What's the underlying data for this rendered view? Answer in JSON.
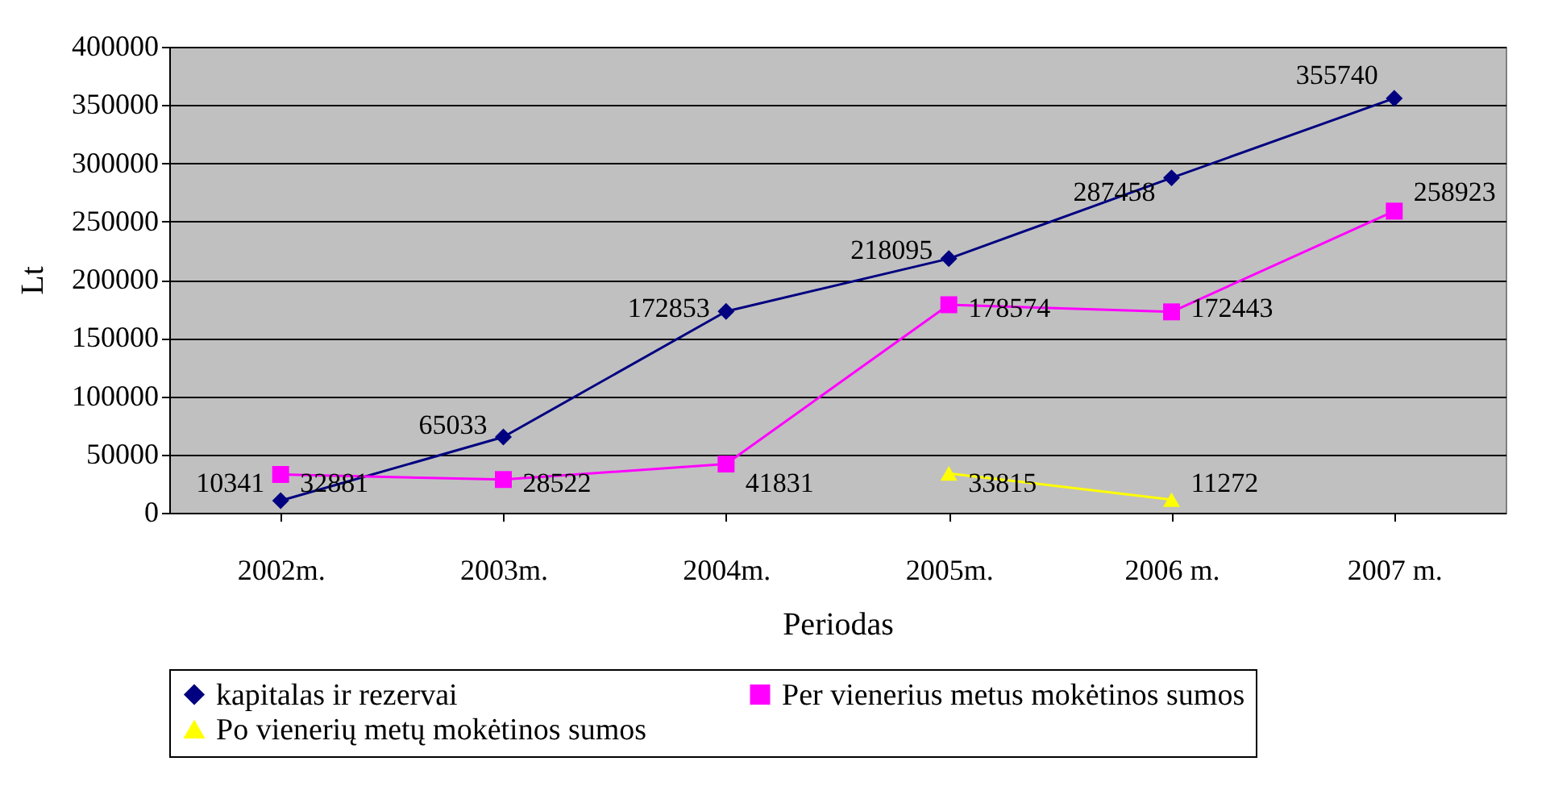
{
  "chart_data": {
    "type": "line",
    "xlabel": "Periodas",
    "ylabel": "Lt",
    "categories": [
      "2002m.",
      "2003m.",
      "2004m.",
      "2005m.",
      "2006 m.",
      "2007 m."
    ],
    "series": [
      {
        "name": "kapitalas ir rezervai",
        "color": "#000080",
        "marker": "diamond",
        "values": [
          10341,
          65033,
          172853,
          218095,
          287458,
          355740
        ]
      },
      {
        "name": "Per vienerius metus mokėtinos sumos",
        "color": "#ff00ff",
        "marker": "square",
        "values": [
          32881,
          28522,
          41831,
          178574,
          172443,
          258923
        ]
      },
      {
        "name": "Po vienerių metų mokėtinos sumos",
        "color": "#ffff00",
        "marker": "triangle",
        "values": [
          null,
          null,
          null,
          33815,
          11272,
          null
        ]
      }
    ],
    "ylim": [
      0,
      400000
    ],
    "yticks": [
      0,
      50000,
      100000,
      150000,
      200000,
      250000,
      300000,
      350000,
      400000
    ],
    "grid": "y",
    "legend": "bottom",
    "data_labels": true
  }
}
